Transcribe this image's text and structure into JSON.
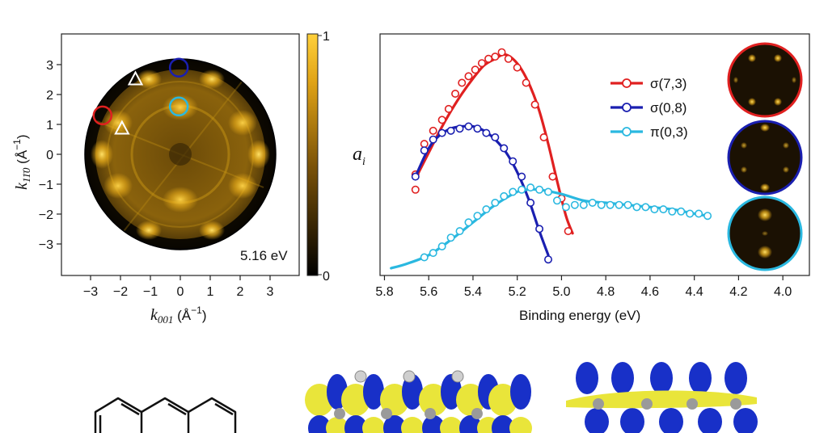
{
  "panel_left": {
    "xlabel_base": "k",
    "xlabel_sub": "001",
    "xlabel_unit": " (Å",
    "xlabel_sup": "−1",
    "xlabel_close": ")",
    "ylabel_base": "k",
    "ylabel_sub": "11̄0",
    "ylabel_unit": " (Å",
    "ylabel_sup": "−1",
    "ylabel_close": ")",
    "energy_label": "5.16 eV",
    "colorbar_max": "1",
    "colorbar_min": "0",
    "colors": {
      "map_dark": "#000000",
      "map_bright": "#f0b21a"
    }
  },
  "chart_data": [
    {
      "type": "heatmap",
      "title": "",
      "xlabel": "k001 (Å−1)",
      "ylabel": "k11̄0 (Å−1)",
      "xlim": [
        -4,
        4
      ],
      "ylim": [
        -4,
        4
      ],
      "x_ticks": [
        "−3",
        "−2",
        "−1",
        "0",
        "1",
        "2",
        "3"
      ],
      "y_ticks": [
        "3",
        "2",
        "1",
        "0",
        "−1",
        "−2",
        "−3"
      ],
      "colorbar_range": [
        0,
        1
      ],
      "markers": [
        {
          "shape": "circle",
          "color": "#e02020",
          "x": -2.6,
          "y": 1.3
        },
        {
          "shape": "circle",
          "color": "#1a1fb0",
          "x": -0.05,
          "y": 2.9
        },
        {
          "shape": "circle",
          "color": "#2ab8e0",
          "x": -0.05,
          "y": 1.6
        },
        {
          "shape": "triangle",
          "color": "#ffffff",
          "x": -1.5,
          "y": 2.5
        },
        {
          "shape": "triangle",
          "color": "#ffffff",
          "x": -1.95,
          "y": 0.85
        }
      ]
    },
    {
      "type": "line",
      "xlabel": "Binding energy (eV)",
      "ylabel": "a",
      "ylabel_sub": "i",
      "xlim": [
        5.82,
        3.88
      ],
      "ylim": [
        0,
        1
      ],
      "x_ticks": [
        "5.8",
        "5.6",
        "5.4",
        "5.2",
        "5.0",
        "4.8",
        "4.6",
        "4.4",
        "4.2",
        "4.0"
      ],
      "legend_position": "top-right",
      "series": [
        {
          "name": "σ(7,3)",
          "color": "#e02020",
          "points_x": [
            5.66,
            5.66,
            5.62,
            5.58,
            5.54,
            5.51,
            5.48,
            5.45,
            5.42,
            5.39,
            5.36,
            5.33,
            5.3,
            5.27,
            5.24,
            5.2,
            5.16,
            5.12,
            5.08,
            5.04,
            5.0,
            4.97
          ],
          "points_y": [
            0.36,
            0.43,
            0.57,
            0.63,
            0.68,
            0.73,
            0.8,
            0.85,
            0.88,
            0.91,
            0.94,
            0.96,
            0.97,
            0.99,
            0.96,
            0.92,
            0.85,
            0.75,
            0.6,
            0.42,
            0.32,
            0.17
          ],
          "fit_x": [
            5.66,
            5.6,
            5.55,
            5.5,
            5.45,
            5.4,
            5.35,
            5.3,
            5.26,
            5.22,
            5.18,
            5.14,
            5.1,
            5.06,
            5.02,
            4.98,
            4.95
          ],
          "fit_y": [
            0.41,
            0.53,
            0.63,
            0.72,
            0.8,
            0.87,
            0.93,
            0.96,
            0.98,
            0.96,
            0.91,
            0.83,
            0.72,
            0.57,
            0.4,
            0.24,
            0.16
          ]
        },
        {
          "name": "σ(0,8)",
          "color": "#1a1fb0",
          "points_x": [
            5.66,
            5.62,
            5.58,
            5.54,
            5.5,
            5.46,
            5.42,
            5.38,
            5.34,
            5.3,
            5.26,
            5.22,
            5.18,
            5.14,
            5.1,
            5.06
          ],
          "points_y": [
            0.42,
            0.54,
            0.59,
            0.62,
            0.63,
            0.64,
            0.65,
            0.64,
            0.62,
            0.6,
            0.55,
            0.49,
            0.42,
            0.3,
            0.18,
            0.04
          ],
          "fit_x": [
            5.66,
            5.6,
            5.55,
            5.5,
            5.45,
            5.4,
            5.35,
            5.3,
            5.25,
            5.2,
            5.15,
            5.1,
            5.06
          ],
          "fit_y": [
            0.42,
            0.55,
            0.61,
            0.64,
            0.65,
            0.65,
            0.63,
            0.59,
            0.53,
            0.44,
            0.32,
            0.17,
            0.06
          ]
        },
        {
          "name": "π(0,3)",
          "color": "#2ab8e0",
          "points_x": [
            5.62,
            5.58,
            5.54,
            5.5,
            5.46,
            5.42,
            5.38,
            5.34,
            5.3,
            5.26,
            5.22,
            5.18,
            5.14,
            5.1,
            5.06,
            5.02,
            4.98,
            4.94,
            4.9,
            4.86,
            4.82,
            4.78,
            4.74,
            4.7,
            4.66,
            4.62,
            4.58,
            4.54,
            4.5,
            4.46,
            4.42,
            4.38,
            4.34
          ],
          "points_y": [
            0.05,
            0.07,
            0.1,
            0.14,
            0.17,
            0.21,
            0.24,
            0.27,
            0.3,
            0.33,
            0.35,
            0.36,
            0.37,
            0.36,
            0.35,
            0.31,
            0.28,
            0.29,
            0.29,
            0.3,
            0.29,
            0.29,
            0.29,
            0.29,
            0.28,
            0.28,
            0.27,
            0.27,
            0.26,
            0.26,
            0.25,
            0.25,
            0.24
          ],
          "fit_x": [
            5.77,
            5.7,
            5.6,
            5.5,
            5.4,
            5.3,
            5.2,
            5.16,
            5.1,
            5.0,
            4.9,
            4.8,
            4.7,
            4.6,
            4.5,
            4.4,
            4.34
          ],
          "fit_y": [
            0.0,
            0.02,
            0.06,
            0.13,
            0.21,
            0.29,
            0.35,
            0.36,
            0.36,
            0.34,
            0.31,
            0.3,
            0.29,
            0.28,
            0.27,
            0.25,
            0.24
          ]
        }
      ]
    }
  ]
}
